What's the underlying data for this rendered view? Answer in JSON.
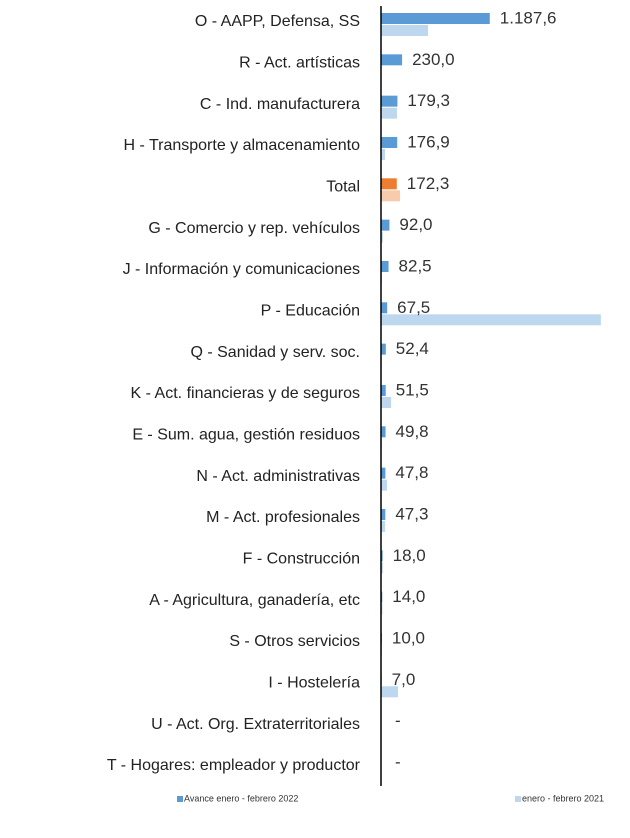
{
  "chart_data": {
    "type": "barh",
    "categories": [
      "O - AAPP, Defensa, SS",
      "R - Act. artísticas",
      "C - Ind. manufacturera",
      "H - Transporte y almacenamiento",
      "Total",
      "G - Comercio y rep. vehículos",
      "J - Información y comunicaciones",
      "P - Educación",
      "Q - Sanidad y serv. soc.",
      "K - Act. financieras y de seguros",
      "E - Sum. agua, gestión residuos",
      "N - Act. administrativas",
      "M - Act. profesionales",
      "F - Construcción",
      "A - Agricultura, ganadería, etc",
      "S - Otros servicios",
      "I - Hostelería",
      "U - Act. Org. Extraterritoriales",
      "T - Hogares: empleador y productor"
    ],
    "series": [
      {
        "name": "Avance enero - febrero 2022",
        "colors": [
          "#5b9bd5",
          "#5b9bd5",
          "#5b9bd5",
          "#5b9bd5",
          "#ed7d31",
          "#5b9bd5",
          "#5b9bd5",
          "#5b9bd5",
          "#5b9bd5",
          "#5b9bd5",
          "#5b9bd5",
          "#5b9bd5",
          "#5b9bd5",
          "#5b9bd5",
          "#5b9bd5",
          "#5b9bd5",
          "#5b9bd5",
          "#5b9bd5",
          "#5b9bd5"
        ],
        "values": [
          1187.6,
          230.0,
          179.3,
          176.9,
          172.3,
          92.0,
          82.5,
          67.5,
          52.4,
          51.5,
          49.8,
          47.8,
          47.3,
          18.0,
          14.0,
          10.0,
          7.0,
          null,
          null
        ],
        "value_labels": [
          "1.187,6",
          "230,0",
          "179,3",
          "176,9",
          "172,3",
          "92,0",
          "82,5",
          "67,5",
          "52,4",
          "51,5",
          "49,8",
          "47,8",
          "47,3",
          "18,0",
          "14,0",
          "10,0",
          "7,0",
          "-",
          "-"
        ]
      },
      {
        "name": "enero - febrero 2021",
        "colors": [
          "#bdd7ee",
          "#bdd7ee",
          "#bdd7ee",
          "#bdd7ee",
          "#f8cbad",
          "#bdd7ee",
          "#bdd7ee",
          "#bdd7ee",
          "#bdd7ee",
          "#bdd7ee",
          "#bdd7ee",
          "#bdd7ee",
          "#bdd7ee",
          "#bdd7ee",
          "#bdd7ee",
          "#bdd7ee",
          "#bdd7ee",
          "#bdd7ee",
          "#bdd7ee"
        ],
        "values": [
          514,
          0,
          175,
          44,
          208,
          20,
          10,
          2400,
          8,
          110,
          8,
          65,
          45,
          20,
          15,
          10,
          185,
          null,
          null
        ]
      }
    ],
    "xlim": [
      0,
      2500
    ]
  }
}
